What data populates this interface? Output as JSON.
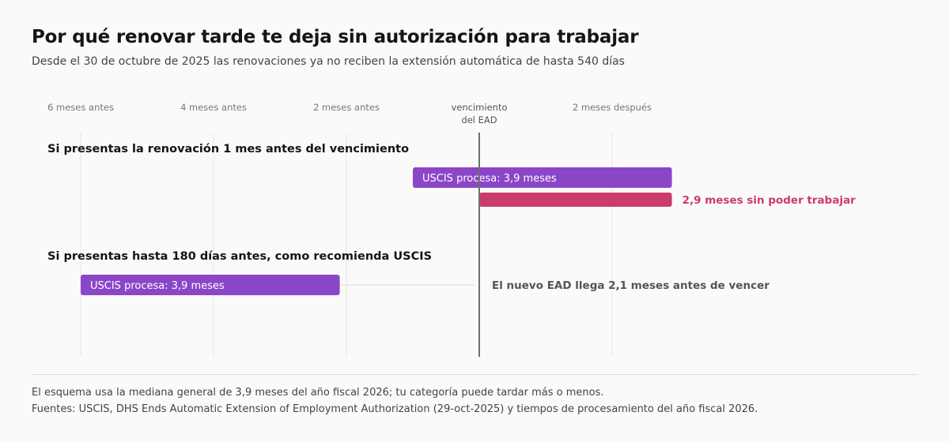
{
  "header": {
    "title": "Por qué renovar tarde te deja sin autorización para trabajar",
    "subtitle": "Desde el 30 de octubre de 2025 las renovaciones ya no reciben la extensión automática de hasta 540 días"
  },
  "chart_data": {
    "type": "bar",
    "orientation": "horizontal-timeline",
    "x_unit": "meses respecto al vencimiento del EAD",
    "xlim": [
      -6.3,
      3.3
    ],
    "ticks": [
      {
        "value": -6,
        "label": "6 meses antes"
      },
      {
        "value": -4,
        "label": "4 meses antes"
      },
      {
        "value": -2,
        "label": "2 meses antes"
      },
      {
        "value": 0,
        "label": "vencimiento del EAD",
        "lines": [
          "vencimiento",
          "del EAD"
        ]
      },
      {
        "value": 2,
        "label": "2 meses después"
      }
    ],
    "reference_line": 0,
    "scenarios": [
      {
        "heading": "Si presentas la renovación 1 mes antes del vencimiento",
        "bars": [
          {
            "label": "USCIS procesa: 3,9 meses",
            "start": -1.0,
            "end": 2.9,
            "color": "#8b46c8",
            "label_position": "inside"
          },
          {
            "label": "2,9 meses sin poder trabajar",
            "start": 0.0,
            "end": 2.9,
            "color": "#c93c6c",
            "label_position": "outside"
          }
        ]
      },
      {
        "heading": "Si presentas hasta 180 días antes, como recomienda USCIS",
        "bars": [
          {
            "label": "USCIS procesa: 3,9 meses",
            "start": -6.0,
            "end": -2.1,
            "color": "#8b46c8",
            "label_position": "inside"
          }
        ],
        "annotation": {
          "text": "El nuevo EAD llega 2,1 meses antes de vencer",
          "from": -2.1,
          "to": 0.0
        }
      }
    ]
  },
  "footer": {
    "note": "El esquema usa la mediana general de 3,9 meses del año fiscal 2026; tu categoría puede tardar más o menos.",
    "sources": "Fuentes: USCIS, DHS Ends Automatic Extension of Employment Authorization (29-oct-2025) y tiempos de procesamiento del año fiscal 2026."
  },
  "colors": {
    "background": "#fafafa",
    "grid": "#e7e7e7",
    "reference": "#6e6e6e",
    "processing": "#8b46c8",
    "gap": "#c93c6c",
    "tick_text": "#777777",
    "annotation_text": "#555555"
  }
}
